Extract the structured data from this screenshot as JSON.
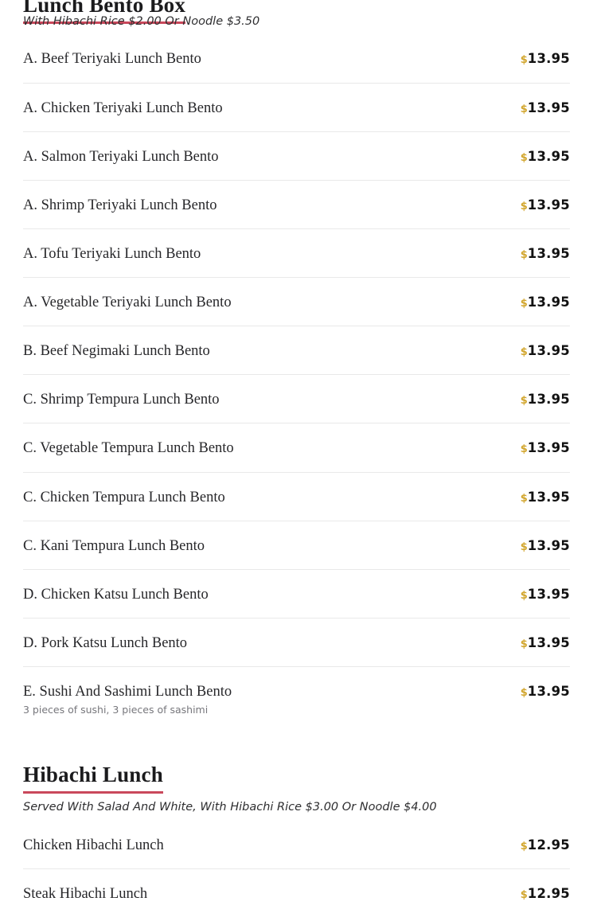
{
  "currency_symbol": "$",
  "colors": {
    "accent_underline": "#c9485b",
    "price_symbol": "#d2a62e",
    "price_amount": "#121212",
    "divider": "#e9e9e9",
    "item_text": "#27272a",
    "description_text": "#77777c",
    "background": "#ffffff"
  },
  "sections": [
    {
      "title": "Lunch Bento Box",
      "subtitle": "With Hibachi Rice $2.00 Or Noodle $3.50",
      "items": [
        {
          "name": "A. Beef Teriyaki Lunch Bento",
          "price": "13.95"
        },
        {
          "name": "A. Chicken Teriyaki Lunch Bento",
          "price": "13.95"
        },
        {
          "name": "A. Salmon Teriyaki Lunch Bento",
          "price": "13.95"
        },
        {
          "name": "A. Shrimp Teriyaki Lunch Bento",
          "price": "13.95"
        },
        {
          "name": "A. Tofu Teriyaki Lunch Bento",
          "price": "13.95"
        },
        {
          "name": "A. Vegetable Teriyaki Lunch Bento",
          "price": "13.95"
        },
        {
          "name": "B. Beef Negimaki Lunch Bento",
          "price": "13.95"
        },
        {
          "name": "C. Shrimp Tempura Lunch Bento",
          "price": "13.95"
        },
        {
          "name": "C. Vegetable Tempura Lunch Bento",
          "price": "13.95"
        },
        {
          "name": "C. Chicken Tempura Lunch Bento",
          "price": "13.95"
        },
        {
          "name": "C. Kani Tempura Lunch Bento",
          "price": "13.95"
        },
        {
          "name": "D. Chicken Katsu Lunch Bento",
          "price": "13.95"
        },
        {
          "name": "D. Pork Katsu Lunch Bento",
          "price": "13.95"
        },
        {
          "name": "E. Sushi And Sashimi Lunch Bento",
          "price": "13.95",
          "description": "3 pieces of sushi, 3 pieces of sashimi"
        }
      ]
    },
    {
      "title": "Hibachi Lunch",
      "subtitle": "Served With Salad And White, With Hibachi Rice $3.00 Or Noodle $4.00",
      "items": [
        {
          "name": "Chicken Hibachi Lunch",
          "price": "12.95"
        },
        {
          "name": "Steak Hibachi Lunch",
          "price": "12.95"
        }
      ]
    }
  ]
}
